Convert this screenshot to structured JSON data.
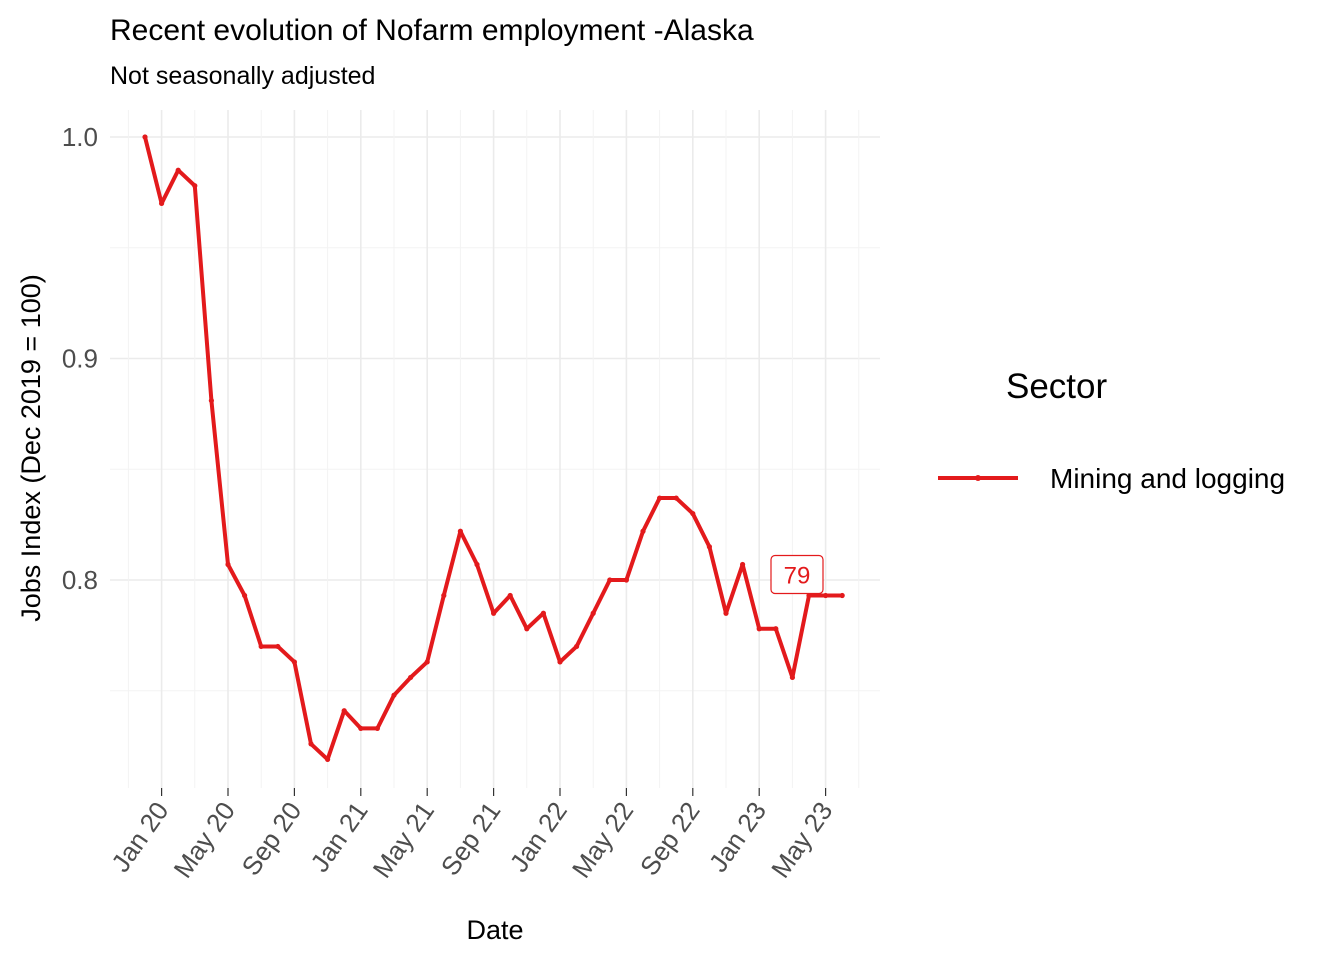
{
  "chart_data": {
    "type": "line",
    "title": "Recent evolution of Nofarm employment -Alaska",
    "subtitle": "Not seasonally adjusted",
    "xlabel": "Date",
    "ylabel": "Jobs Index (Dec 2019 = 100)",
    "x_ticks": [
      "Jan 20",
      "May 20",
      "Sep 20",
      "Jan 21",
      "May 21",
      "Sep 21",
      "Jan 22",
      "May 22",
      "Sep 22",
      "Jan 23",
      "May 23"
    ],
    "y_ticks": [
      "0.8",
      "0.9",
      "1.0"
    ],
    "ylim": [
      0.705,
      1.0
    ],
    "grid": true,
    "legend": {
      "title": "Sector",
      "position": "right"
    },
    "colors": {
      "series": "#e31a1c",
      "grid": "#ebebeb"
    },
    "x": [
      "2019-12",
      "2020-01",
      "2020-02",
      "2020-03",
      "2020-04",
      "2020-05",
      "2020-06",
      "2020-07",
      "2020-08",
      "2020-09",
      "2020-10",
      "2020-11",
      "2020-12",
      "2021-01",
      "2021-02",
      "2021-03",
      "2021-04",
      "2021-05",
      "2021-06",
      "2021-07",
      "2021-08",
      "2021-09",
      "2021-10",
      "2021-11",
      "2021-12",
      "2022-01",
      "2022-02",
      "2022-03",
      "2022-04",
      "2022-05",
      "2022-06",
      "2022-07",
      "2022-08",
      "2022-09",
      "2022-10",
      "2022-11",
      "2022-12",
      "2023-01",
      "2023-02",
      "2023-03",
      "2023-04",
      "2023-05",
      "2023-06"
    ],
    "series": [
      {
        "name": "Mining and logging",
        "values": [
          1.0,
          0.97,
          0.985,
          0.978,
          0.881,
          0.807,
          0.793,
          0.77,
          0.77,
          0.763,
          0.726,
          0.719,
          0.741,
          0.733,
          0.733,
          0.748,
          0.756,
          0.763,
          0.793,
          0.822,
          0.807,
          0.785,
          0.793,
          0.778,
          0.785,
          0.763,
          0.77,
          0.785,
          0.8,
          0.8,
          0.822,
          0.837,
          0.837,
          0.83,
          0.815,
          0.785,
          0.807,
          0.778,
          0.778,
          0.756,
          0.793,
          0.793,
          0.793
        ]
      }
    ],
    "annotation": {
      "text": "79",
      "x": "2023-04",
      "y": 0.793
    }
  }
}
